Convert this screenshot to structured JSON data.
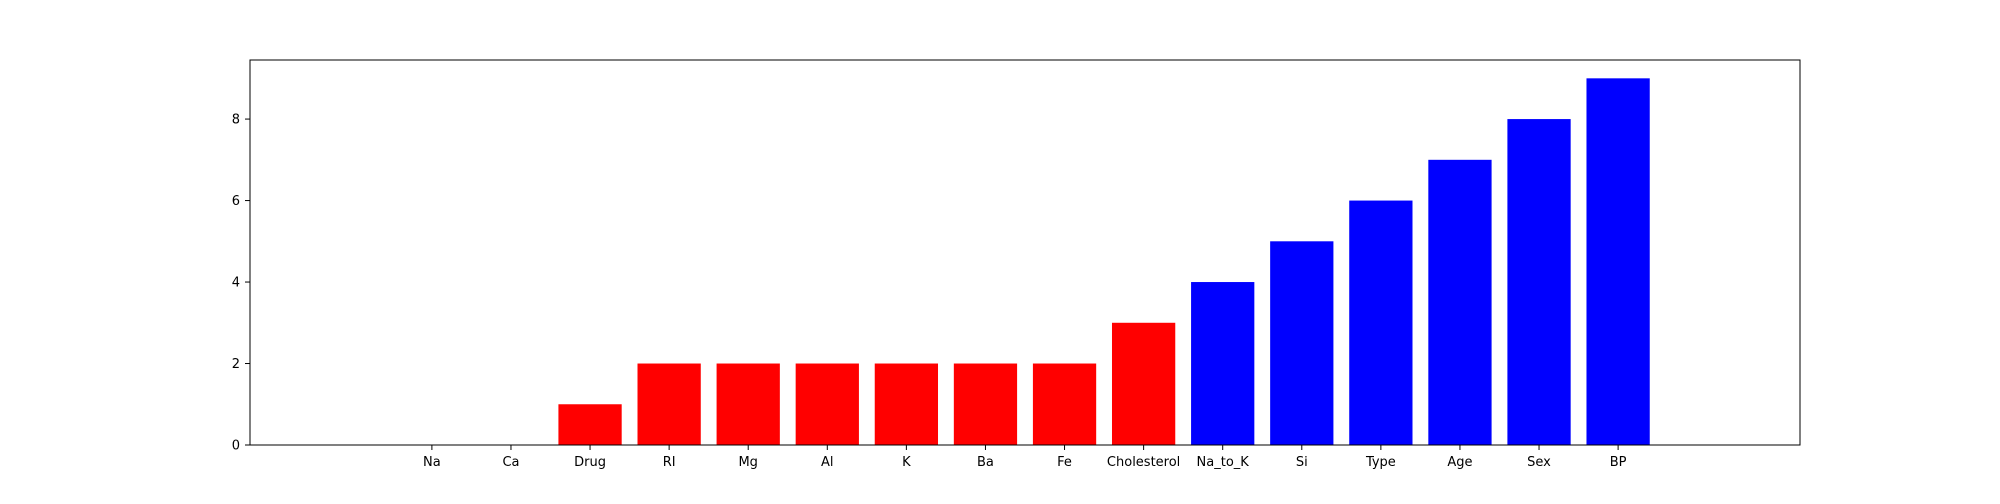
{
  "chart_data": {
    "type": "bar",
    "title": "",
    "xlabel": "",
    "ylabel": "",
    "categories": [
      "Na",
      "Ca",
      "Drug",
      "RI",
      "Mg",
      "Al",
      "K",
      "Ba",
      "Fe",
      "Cholesterol",
      "Na_to_K",
      "Si",
      "Type",
      "Age",
      "Sex",
      "BP"
    ],
    "values": [
      0,
      0,
      1,
      2,
      2,
      2,
      2,
      2,
      2,
      3,
      4,
      5,
      6,
      7,
      8,
      9
    ],
    "bar_colors": [
      "#ff0000",
      "#ff0000",
      "#ff0000",
      "#ff0000",
      "#ff0000",
      "#ff0000",
      "#ff0000",
      "#ff0000",
      "#ff0000",
      "#ff0000",
      "#0000ff",
      "#0000ff",
      "#0000ff",
      "#0000ff",
      "#0000ff",
      "#0000ff"
    ],
    "ylim": [
      0,
      9.45
    ],
    "yticks": [
      0,
      2,
      4,
      6,
      8
    ],
    "ytick_labels": [
      "0",
      "2",
      "4",
      "6",
      "8"
    ],
    "grid": false,
    "legend": "none"
  }
}
